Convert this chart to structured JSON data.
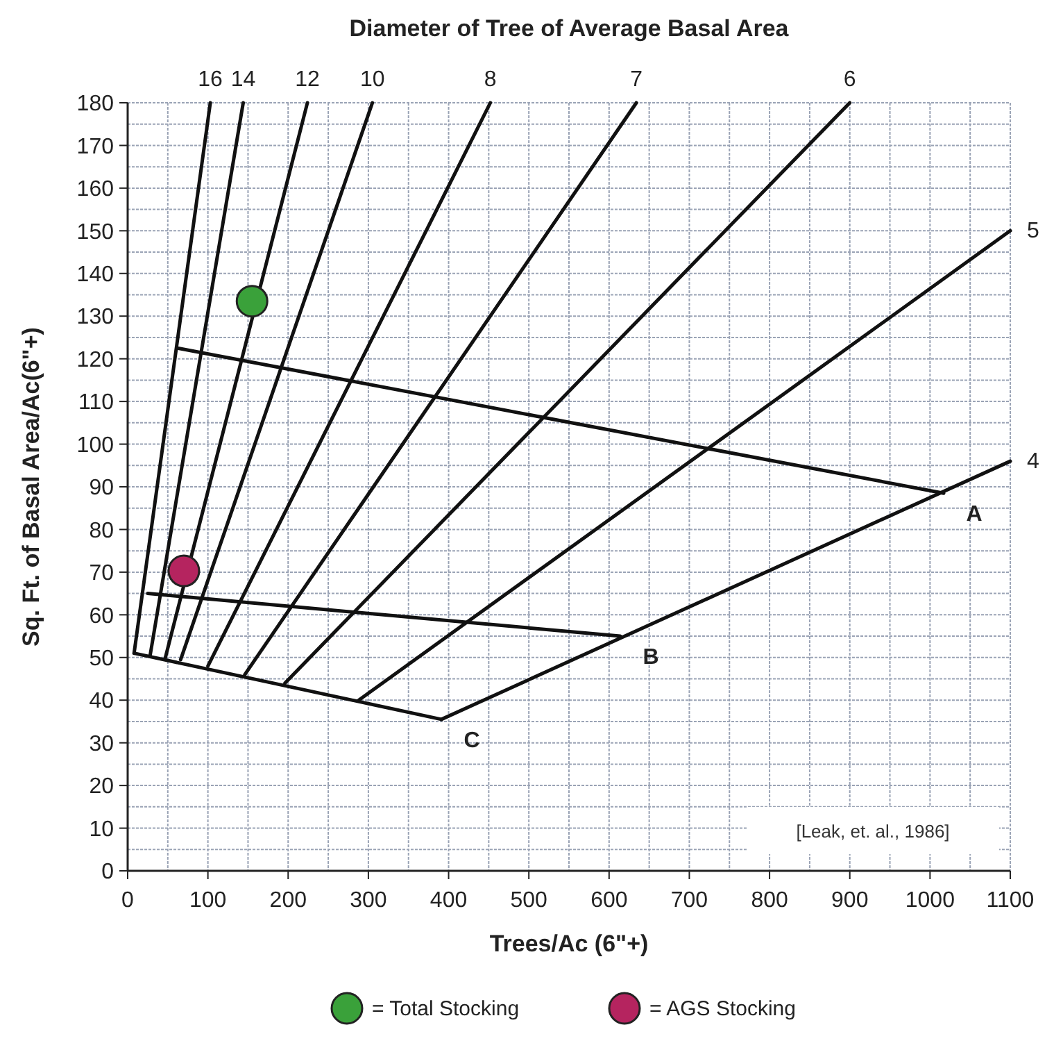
{
  "chart_data": {
    "type": "line",
    "title": "Diameter of Tree of Average Basal Area",
    "xlabel": "Trees/Ac (6\"+)",
    "ylabel": "Sq. Ft. of Basal Area/Ac(6\"+)",
    "xlim": [
      0,
      1100
    ],
    "ylim": [
      0,
      180
    ],
    "xticks": [
      0,
      {
        "value": 50,
        "label": null
      },
      100,
      {
        "value": 150,
        "label": null
      },
      200,
      {
        "value": 250,
        "label": null
      },
      300,
      {
        "value": 350,
        "label": null
      },
      400,
      {
        "value": 450,
        "label": null
      },
      500,
      {
        "value": 550,
        "label": null
      },
      600,
      {
        "value": 650,
        "label": null
      },
      700,
      {
        "value": 750,
        "label": null
      },
      800,
      {
        "value": 850,
        "label": null
      },
      900,
      {
        "value": 950,
        "label": null
      },
      1000,
      {
        "value": 1050,
        "label": null
      },
      1100
    ],
    "yticks": [
      0,
      {
        "value": 5,
        "label": null
      },
      10,
      {
        "value": 15,
        "label": null
      },
      20,
      {
        "value": 25,
        "label": null
      },
      30,
      {
        "value": 35,
        "label": null
      },
      40,
      {
        "value": 45,
        "label": null
      },
      50,
      {
        "value": 55,
        "label": null
      },
      60,
      {
        "value": 65,
        "label": null
      },
      70,
      {
        "value": 75,
        "label": null
      },
      80,
      {
        "value": 85,
        "label": null
      },
      90,
      {
        "value": 95,
        "label": null
      },
      100,
      {
        "value": 105,
        "label": null
      },
      110,
      {
        "value": 115,
        "label": null
      },
      120,
      {
        "value": 125,
        "label": null
      },
      130,
      {
        "value": 135,
        "label": null
      },
      140,
      {
        "value": 145,
        "label": null
      },
      150,
      {
        "value": 155,
        "label": null
      },
      160,
      {
        "value": 165,
        "label": null
      },
      170,
      {
        "value": 175,
        "label": null
      },
      180
    ],
    "grid": true,
    "legend": "bottom",
    "marker": "none",
    "line_style": "solid",
    "series": [
      {
        "name": "16",
        "color": "#111111",
        "x": [
          8,
          103
        ],
        "values": [
          51,
          180
        ]
      },
      {
        "name": "14",
        "color": "#111111",
        "x": [
          28,
          144
        ],
        "values": [
          50.5,
          180
        ]
      },
      {
        "name": "12",
        "color": "#111111",
        "x": [
          47,
          224
        ],
        "values": [
          50,
          180
        ]
      },
      {
        "name": "10",
        "color": "#111111",
        "x": [
          66,
          305
        ],
        "values": [
          49.5,
          180
        ]
      },
      {
        "name": "8",
        "color": "#111111",
        "x": [
          100,
          452
        ],
        "values": [
          48,
          180
        ]
      },
      {
        "name": "7",
        "color": "#111111",
        "x": [
          146,
          634
        ],
        "values": [
          46,
          180
        ]
      },
      {
        "name": "6",
        "color": "#111111",
        "x": [
          196,
          900
        ],
        "values": [
          44,
          180
        ]
      },
      {
        "name": "5",
        "color": "#111111",
        "x": [
          288,
          1100
        ],
        "values": [
          40,
          150
        ]
      },
      {
        "name": "4",
        "color": "#111111",
        "x": [
          391,
          1100
        ],
        "values": [
          35.5,
          96
        ]
      },
      {
        "name": "A",
        "color": "#111111",
        "x": [
          62,
          1017
        ],
        "values": [
          122.5,
          88.5
        ]
      },
      {
        "name": "B",
        "color": "#111111",
        "x": [
          25,
          614
        ],
        "values": [
          65,
          55
        ]
      },
      {
        "name": "C",
        "color": "#111111",
        "x": [
          8,
          391
        ],
        "values": [
          51,
          35.5
        ]
      },
      {
        "name": "= Total Stocking",
        "type": "scatter",
        "marker": "circle",
        "color": "#3aa13a",
        "x": [
          155
        ],
        "values": [
          133.5
        ]
      },
      {
        "name": "= AGS Stocking",
        "type": "scatter",
        "marker": "circle",
        "color": "#b5245f",
        "x": [
          70
        ],
        "values": [
          70.3
        ]
      }
    ],
    "annotations": [
      "[Leak, et. al., 1986]"
    ]
  }
}
